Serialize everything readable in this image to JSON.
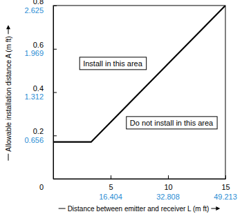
{
  "chart_data": {
    "type": "line",
    "xlabel": "Distance between emitter and receiver L (m ft)",
    "ylabel": "Allowable installation distance A (m ft)",
    "x": [
      0,
      3.3,
      15
    ],
    "values": [
      0.17,
      0.17,
      0.8
    ],
    "color": "#000000",
    "xlim": [
      0,
      15
    ],
    "xticks": [
      5,
      10,
      15
    ],
    "x2lim": [
      0,
      49.213
    ],
    "x2ticks": [
      16.404,
      32.808,
      49.213
    ],
    "ylim": [
      0,
      0.8
    ],
    "yticks": [
      0,
      0.2,
      0.4,
      0.6,
      0.8
    ],
    "y2lim": [
      0,
      2.625
    ],
    "y2ticks": [
      0.656,
      1.312,
      1.969,
      2.625
    ],
    "annotations": [
      "Install in this area",
      "Do not install in this area"
    ],
    "grid": false
  }
}
